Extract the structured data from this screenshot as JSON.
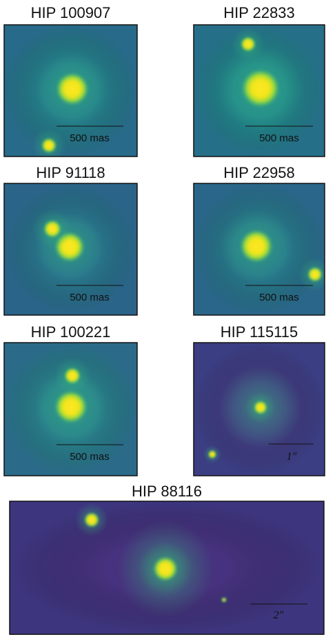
{
  "panels": [
    {
      "title": "HIP 100907",
      "scale": "500 mas"
    },
    {
      "title": "HIP 22833",
      "scale": "500 mas"
    },
    {
      "title": "HIP 91118",
      "scale": "500 mas"
    },
    {
      "title": "HIP 22958",
      "scale": "500 mas"
    },
    {
      "title": "HIP 100221",
      "scale": "500 mas"
    },
    {
      "title": "HIP 115115",
      "scale": "1″"
    },
    {
      "title": "HIP 88116",
      "scale": "2″"
    }
  ]
}
